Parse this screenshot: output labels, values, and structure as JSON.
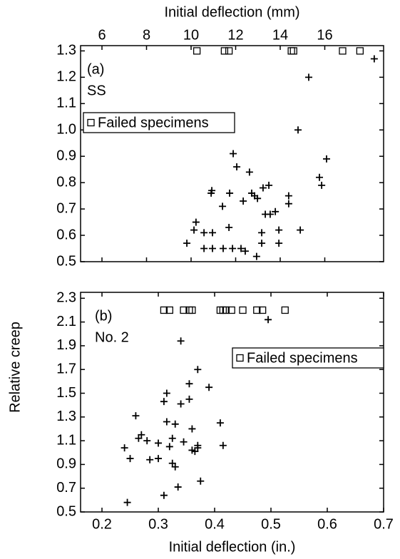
{
  "ylabel": "Relative creep",
  "chart_data": [
    {
      "type": "scatter",
      "xlabel": "Initial deflection (mm)",
      "xaxis_side": "top",
      "xlim": [
        5.04,
        18.64
      ],
      "xticks": [
        6,
        8,
        10,
        12,
        14,
        16
      ],
      "ylim": [
        0.5,
        1.32
      ],
      "yticks": [
        0.5,
        0.6,
        0.7,
        0.8,
        0.9,
        {
          "value": 1,
          "label": "1.0"
        },
        1.1,
        1.2,
        1.3
      ],
      "annotations": [
        "(a)",
        "SS"
      ],
      "legend": "upper left",
      "series": [
        {
          "marker": "plus",
          "color": "#000000",
          "x": [
            9.81,
            10.13,
            10.22,
            10.58,
            10.58,
            10.96,
            10.96,
            10.9,
            10.93,
            11.41,
            11.44,
            11.73,
            11.7,
            11.89,
            12.05,
            11.86,
            12.24,
            12.34,
            12.43,
            12.62,
            12.72,
            12.85,
            12.98,
            12.94,
            13.17,
            13.17,
            13.23,
            13.33,
            13.49,
            13.55,
            13.78,
            13.94,
            13.94,
            14.38,
            14.38,
            14.8,
            14.9,
            15.28,
            15.76,
            15.86,
            16.08,
            18.22
          ],
          "values": [
            0.57,
            0.62,
            0.65,
            0.61,
            0.55,
            0.61,
            0.55,
            0.76,
            0.77,
            0.71,
            0.55,
            0.76,
            0.63,
            0.91,
            0.86,
            0.55,
            0.55,
            0.73,
            0.54,
            0.84,
            0.76,
            0.75,
            0.74,
            0.52,
            0.57,
            0.61,
            0.78,
            0.68,
            0.79,
            0.68,
            0.69,
            0.62,
            0.57,
            0.75,
            0.72,
            1.0,
            0.62,
            1.2,
            0.82,
            0.79,
            0.89,
            1.27
          ]
        },
        {
          "name": "Failed specimens",
          "marker": "square",
          "color": "#000000",
          "x": [
            10.26,
            11.5,
            11.7,
            14.5,
            14.6,
            16.8,
            17.58
          ],
          "values": [
            1.3,
            1.3,
            1.3,
            1.3,
            1.3,
            1.3,
            1.3
          ]
        }
      ]
    },
    {
      "type": "scatter",
      "xlabel": "Initial deflection (in.)",
      "xaxis_side": "bottom",
      "xlim": [
        0.162,
        0.7
      ],
      "xticks": [
        0.2,
        0.3,
        0.4,
        0.5,
        0.6,
        0.7
      ],
      "ylim": [
        0.5,
        2.35
      ],
      "yticks": [
        0.5,
        0.7,
        0.9,
        1.1,
        1.3,
        1.5,
        1.7,
        1.9,
        2.1,
        2.3
      ],
      "annotations": [
        "(b)",
        "No. 2"
      ],
      "legend": "upper right",
      "series": [
        {
          "marker": "plus",
          "color": "#000000",
          "x": [
            0.245,
            0.24,
            0.25,
            0.26,
            0.265,
            0.27,
            0.285,
            0.28,
            0.3,
            0.3,
            0.31,
            0.315,
            0.31,
            0.315,
            0.32,
            0.325,
            0.33,
            0.33,
            0.325,
            0.335,
            0.34,
            0.34,
            0.345,
            0.355,
            0.355,
            0.36,
            0.36,
            0.365,
            0.37,
            0.37,
            0.37,
            0.375,
            0.39,
            0.41,
            0.415,
            0.495
          ],
          "values": [
            0.58,
            1.04,
            0.95,
            1.31,
            1.12,
            1.15,
            0.94,
            1.1,
            1.08,
            0.95,
            1.43,
            1.5,
            0.64,
            1.26,
            1.05,
            0.91,
            0.88,
            1.24,
            1.12,
            0.71,
            1.41,
            1.94,
            1.09,
            1.58,
            1.45,
            1.02,
            1.2,
            1.01,
            1.04,
            1.06,
            1.7,
            0.76,
            1.55,
            1.25,
            1.06,
            2.12
          ]
        },
        {
          "name": "Failed specimens",
          "marker": "square",
          "color": "#000000",
          "x": [
            0.31,
            0.32,
            0.345,
            0.355,
            0.36,
            0.41,
            0.415,
            0.42,
            0.43,
            0.45,
            0.475,
            0.485,
            0.525
          ],
          "values": [
            2.2,
            2.2,
            2.2,
            2.2,
            2.2,
            2.2,
            2.2,
            2.2,
            2.2,
            2.2,
            2.2,
            2.2,
            2.2
          ]
        }
      ]
    }
  ]
}
